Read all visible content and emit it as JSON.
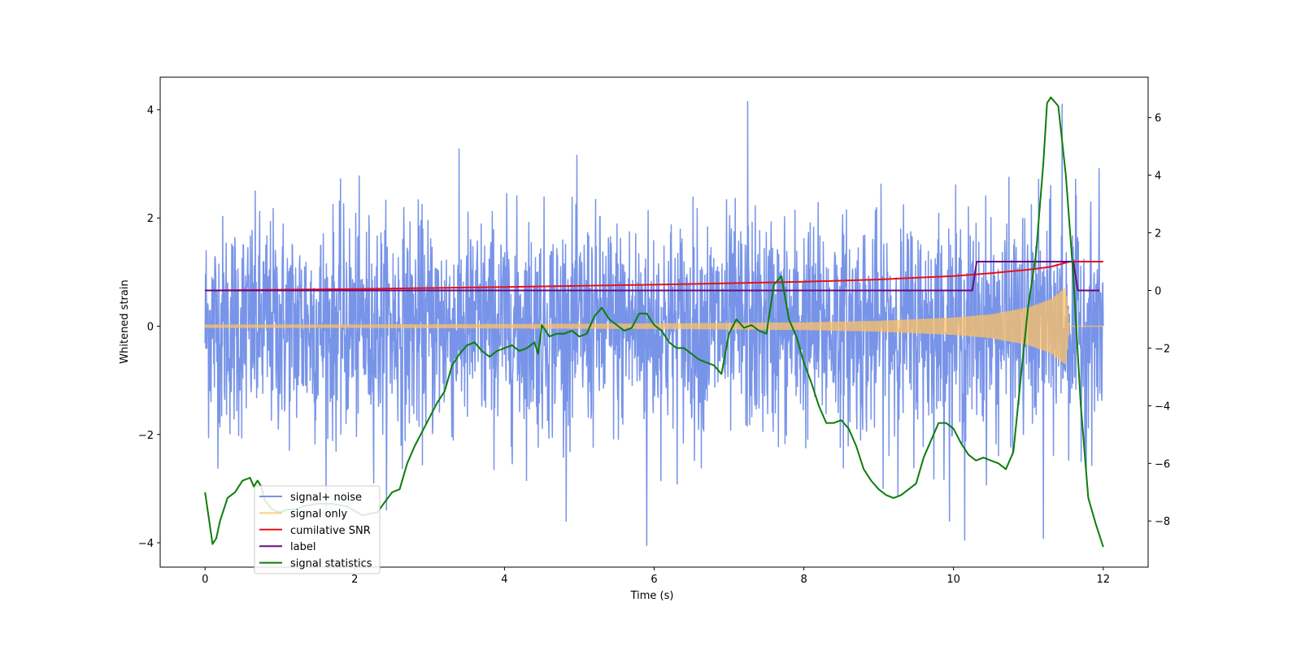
{
  "chart_data": {
    "type": "line",
    "title": "",
    "xlabel": "Time (s)",
    "ylabel": "Whitened strain",
    "ylabel_right": "",
    "xlim": [
      -0.6,
      12.6
    ],
    "ylim": [
      -4.45,
      4.6
    ],
    "ylim_right": [
      -9.6,
      7.4
    ],
    "xticks": [
      0,
      2,
      4,
      6,
      8,
      10,
      12
    ],
    "yticks": [
      -4,
      -2,
      0,
      2,
      4
    ],
    "yticks_right": [
      -8,
      -6,
      -4,
      -2,
      0,
      2,
      4,
      6
    ],
    "grid": false,
    "legend_location": "lower-left",
    "legend": [
      "signal+ noise",
      "signal only",
      "cumilative SNR",
      "label",
      "signal statistics"
    ],
    "series": [
      {
        "name": "signal+ noise",
        "axis": "left",
        "color": "#7894e8",
        "description": "whitened noisy strain, roughly Gaussian with std ~1 and peaks to about ±4",
        "x_range": [
          0,
          12
        ],
        "std": 1.0,
        "peaks": [
          [
            7.25,
            4.15
          ],
          [
            11.45,
            4.1
          ],
          [
            5.9,
            -4.05
          ],
          [
            10.15,
            -3.95
          ],
          [
            11.2,
            -3.92
          ]
        ]
      },
      {
        "name": "signal only",
        "axis": "left",
        "color": "#ffc266",
        "description": "chirp whose amplitude grows from ~0.03 to ~0.8 and ends near t=11.55 s",
        "x": [
          0,
          2,
          4,
          6,
          8,
          9,
          10,
          10.5,
          11,
          11.3,
          11.5,
          11.55,
          12
        ],
        "envelope": [
          0.03,
          0.03,
          0.04,
          0.05,
          0.07,
          0.1,
          0.16,
          0.22,
          0.35,
          0.5,
          0.72,
          0.0,
          0.0
        ]
      },
      {
        "name": "cumilative SNR",
        "axis": "right",
        "color": "#e8101a",
        "x": [
          0,
          2,
          4,
          6,
          8,
          9,
          10,
          10.5,
          11,
          11.3,
          11.55,
          12
        ],
        "y": [
          0.0,
          0.05,
          0.12,
          0.2,
          0.3,
          0.38,
          0.5,
          0.6,
          0.72,
          0.82,
          1.0,
          1.0
        ]
      },
      {
        "name": "label",
        "axis": "right",
        "color": "#6a0a80",
        "x": [
          0,
          10.25,
          10.31,
          11.6,
          11.66,
          11.95
        ],
        "y": [
          0,
          0,
          1,
          1,
          0,
          0
        ]
      },
      {
        "name": "signal statistics",
        "axis": "right",
        "color": "#0c7d0c",
        "x": [
          0,
          0.1,
          0.15,
          0.2,
          0.3,
          0.4,
          0.5,
          0.6,
          0.65,
          0.7,
          0.75,
          0.8,
          0.9,
          1.0,
          1.1,
          1.2,
          1.3,
          1.5,
          1.7,
          1.9,
          2.1,
          2.3,
          2.5,
          2.6,
          2.7,
          2.8,
          2.9,
          3.0,
          3.1,
          3.2,
          3.3,
          3.4,
          3.5,
          3.6,
          3.7,
          3.8,
          3.9,
          4.0,
          4.1,
          4.2,
          4.3,
          4.4,
          4.45,
          4.5,
          4.6,
          4.7,
          4.8,
          4.9,
          5.0,
          5.1,
          5.2,
          5.3,
          5.4,
          5.5,
          5.6,
          5.7,
          5.8,
          5.9,
          6.0,
          6.1,
          6.2,
          6.3,
          6.4,
          6.5,
          6.6,
          6.7,
          6.8,
          6.9,
          7.0,
          7.1,
          7.2,
          7.3,
          7.4,
          7.5,
          7.6,
          7.7,
          7.8,
          7.9,
          8.0,
          8.1,
          8.2,
          8.3,
          8.4,
          8.5,
          8.6,
          8.7,
          8.8,
          8.9,
          9.0,
          9.1,
          9.2,
          9.3,
          9.4,
          9.5,
          9.6,
          9.7,
          9.8,
          9.9,
          10.0,
          10.1,
          10.2,
          10.3,
          10.4,
          10.5,
          10.6,
          10.7,
          10.8,
          10.9,
          11.0,
          11.1,
          11.2,
          11.25,
          11.3,
          11.4,
          11.5,
          11.6,
          11.7,
          11.8,
          11.9,
          12.0
        ],
        "y": [
          -7.0,
          -8.8,
          -8.6,
          -8.0,
          -7.2,
          -7.0,
          -6.6,
          -6.5,
          -6.8,
          -6.6,
          -6.8,
          -7.3,
          -7.6,
          -7.7,
          -7.6,
          -7.6,
          -7.5,
          -7.4,
          -7.4,
          -7.5,
          -7.8,
          -7.7,
          -7.0,
          -6.9,
          -6.0,
          -5.4,
          -4.9,
          -4.4,
          -3.9,
          -3.5,
          -2.6,
          -2.2,
          -1.9,
          -1.8,
          -2.1,
          -2.3,
          -2.1,
          -2.0,
          -1.9,
          -2.1,
          -2.0,
          -1.8,
          -2.2,
          -1.2,
          -1.6,
          -1.5,
          -1.5,
          -1.4,
          -1.6,
          -1.5,
          -0.9,
          -0.6,
          -1.0,
          -1.2,
          -1.4,
          -1.3,
          -0.8,
          -0.8,
          -1.2,
          -1.4,
          -1.8,
          -2.0,
          -2.0,
          -2.2,
          -2.4,
          -2.5,
          -2.6,
          -2.9,
          -1.5,
          -1.0,
          -1.3,
          -1.2,
          -1.4,
          -1.5,
          0.2,
          0.5,
          -1.0,
          -1.6,
          -2.5,
          -3.2,
          -4.0,
          -4.6,
          -4.6,
          -4.5,
          -4.8,
          -5.4,
          -6.2,
          -6.6,
          -6.9,
          -7.1,
          -7.2,
          -7.1,
          -6.9,
          -6.7,
          -5.8,
          -5.2,
          -4.6,
          -4.6,
          -4.8,
          -5.3,
          -5.7,
          -5.9,
          -5.8,
          -5.9,
          -6.0,
          -6.2,
          -5.6,
          -3.0,
          -0.5,
          1.2,
          4.4,
          6.5,
          6.7,
          6.4,
          4.0,
          0.5,
          -4.0,
          -7.2,
          -8.1,
          -8.9
        ]
      }
    ]
  }
}
